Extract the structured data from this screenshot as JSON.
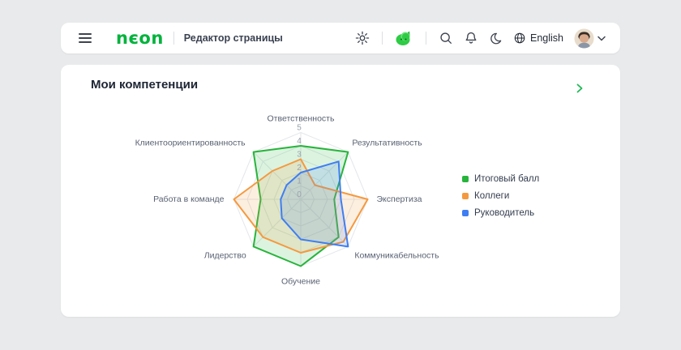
{
  "header": {
    "logo": "nєon",
    "page_title": "Редактор страницы",
    "language": "English",
    "icons": [
      "menu-icon",
      "gear-icon",
      "mascot-icon",
      "search-icon",
      "bell-icon",
      "moon-icon",
      "globe-icon",
      "avatar",
      "chevron-down-icon"
    ]
  },
  "card": {
    "title": "Мои компетенции",
    "chevron": "chevron-right-icon"
  },
  "colors": {
    "accent_green": "#00b33c",
    "grid": "#e4e6ea",
    "tick_label": "#9aa1ab",
    "axis_label": "#596273"
  },
  "chart_data": {
    "type": "radar",
    "title": "Мои компетенции",
    "axes": [
      "Ответственность",
      "Результативность",
      "Экспертиза",
      "Коммуникабельность",
      "Обучение",
      "Лидерство",
      "Работа в команде",
      "Клиентоориентированность"
    ],
    "ticks": [
      0,
      1,
      2,
      3,
      4,
      5
    ],
    "max": 5,
    "rings": 5,
    "legend_position": "right",
    "series": [
      {
        "name": "Итоговый балл",
        "color": "#28b43c",
        "values": [
          4,
          5,
          2.5,
          4,
          5,
          5,
          3,
          5
        ]
      },
      {
        "name": "Коллеги",
        "color": "#f5993f",
        "values": [
          3,
          1.5,
          5,
          4.5,
          4,
          4,
          5,
          3
        ]
      },
      {
        "name": "Руководитель",
        "color": "#3f7ef2",
        "values": [
          2,
          4,
          3,
          5,
          3,
          2,
          1.5,
          1.5
        ]
      }
    ]
  }
}
